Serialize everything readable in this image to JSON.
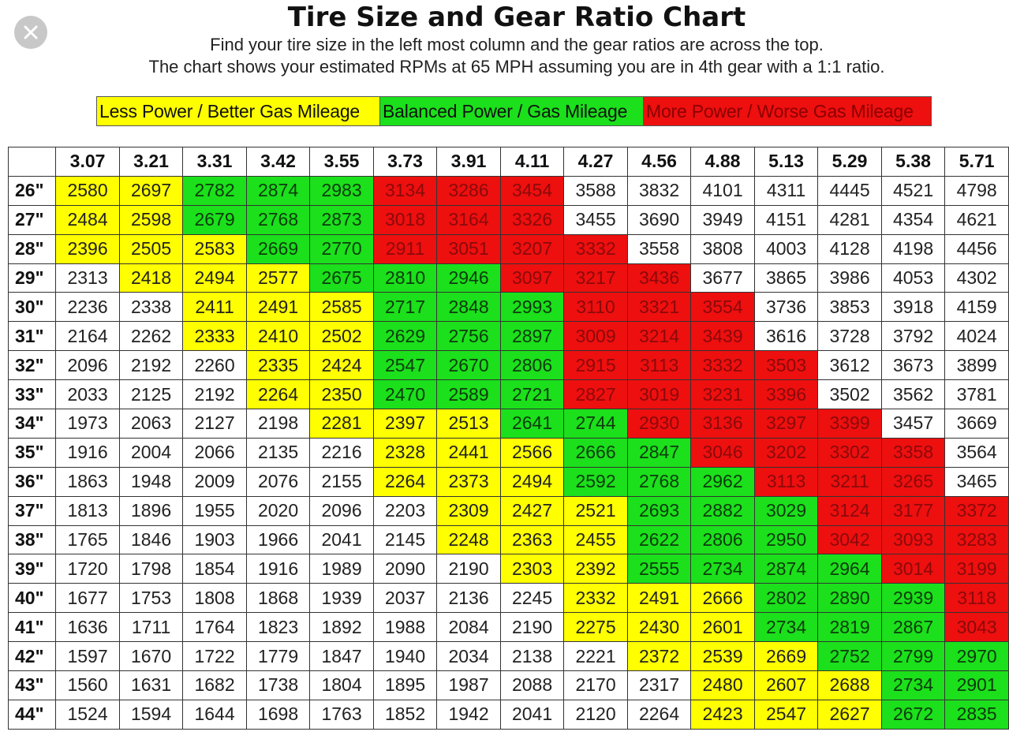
{
  "header": {
    "close_icon": "close-x-icon",
    "title": "Tire Size and Gear Ratio Chart",
    "subtitle_line1": "Find your tire size in the left most column and the gear ratios are across the top.",
    "subtitle_line2": "The chart shows your estimated RPMs at 65 MPH assuming you are in 4th gear with a 1:1 ratio."
  },
  "legend": [
    {
      "label": "Less Power / Better Gas Mileage",
      "color": "#ffff00"
    },
    {
      "label": "Balanced Power / Gas Mileage",
      "color": "#1be01b"
    },
    {
      "label": "More Power / Worse Gas Mileage",
      "color": "#ee0f0f"
    }
  ],
  "colors": {
    "w": "#ffffff",
    "y": "#ffff00",
    "g": "#1be01b",
    "r": "#ee0f0f"
  },
  "chart_data": {
    "type": "table",
    "columns": [
      "3.07",
      "3.21",
      "3.31",
      "3.42",
      "3.55",
      "3.73",
      "3.91",
      "4.11",
      "4.27",
      "4.56",
      "4.88",
      "5.13",
      "5.29",
      "5.38",
      "5.71"
    ],
    "rows": [
      {
        "tire": "26\"",
        "values": [
          "2580",
          "2697",
          "2782",
          "2874",
          "2983",
          "3134",
          "3286",
          "3454",
          "3588",
          "3832",
          "4101",
          "4311",
          "4445",
          "4521",
          "4798"
        ],
        "colors": "yygggrrrwwwwwww"
      },
      {
        "tire": "27\"",
        "values": [
          "2484",
          "2598",
          "2679",
          "2768",
          "2873",
          "3018",
          "3164",
          "3326",
          "3455",
          "3690",
          "3949",
          "4151",
          "4281",
          "4354",
          "4621"
        ],
        "colors": "yygggrrrwwwwwww"
      },
      {
        "tire": "28\"",
        "values": [
          "2396",
          "2505",
          "2583",
          "2669",
          "2770",
          "2911",
          "3051",
          "3207",
          "3332",
          "3558",
          "3808",
          "4003",
          "4128",
          "4198",
          "4456"
        ],
        "colors": "yyyggrrrrwwwwww"
      },
      {
        "tire": "29\"",
        "values": [
          "2313",
          "2418",
          "2494",
          "2577",
          "2675",
          "2810",
          "2946",
          "3097",
          "3217",
          "3436",
          "3677",
          "3865",
          "3986",
          "4053",
          "4302"
        ],
        "colors": "wyyygggrrrwwwww"
      },
      {
        "tire": "30\"",
        "values": [
          "2236",
          "2338",
          "2411",
          "2491",
          "2585",
          "2717",
          "2848",
          "2993",
          "3110",
          "3321",
          "3554",
          "3736",
          "3853",
          "3918",
          "4159"
        ],
        "colors": "wwyyygggrrrwwww"
      },
      {
        "tire": "31\"",
        "values": [
          "2164",
          "2262",
          "2333",
          "2410",
          "2502",
          "2629",
          "2756",
          "2897",
          "3009",
          "3214",
          "3439",
          "3616",
          "3728",
          "3792",
          "4024"
        ],
        "colors": "wwyyygggrrrwwww"
      },
      {
        "tire": "32\"",
        "values": [
          "2096",
          "2192",
          "2260",
          "2335",
          "2424",
          "2547",
          "2670",
          "2806",
          "2915",
          "3113",
          "3332",
          "3503",
          "3612",
          "3673",
          "3899"
        ],
        "colors": "wwwyygggrrrrwww"
      },
      {
        "tire": "33\"",
        "values": [
          "2033",
          "2125",
          "2192",
          "2264",
          "2350",
          "2470",
          "2589",
          "2721",
          "2827",
          "3019",
          "3231",
          "3396",
          "3502",
          "3562",
          "3781"
        ],
        "colors": "wwwyygggrrrrwww"
      },
      {
        "tire": "34\"",
        "values": [
          "1973",
          "2063",
          "2127",
          "2198",
          "2281",
          "2397",
          "2513",
          "2641",
          "2744",
          "2930",
          "3136",
          "3297",
          "3399",
          "3457",
          "3669"
        ],
        "colors": "wwwwyyyggrrrrww"
      },
      {
        "tire": "35\"",
        "values": [
          "1916",
          "2004",
          "2066",
          "2135",
          "2216",
          "2328",
          "2441",
          "2566",
          "2666",
          "2847",
          "3046",
          "3202",
          "3302",
          "3358",
          "3564"
        ],
        "colors": "wwwwwyyyggrrrrw"
      },
      {
        "tire": "36\"",
        "values": [
          "1863",
          "1948",
          "2009",
          "2076",
          "2155",
          "2264",
          "2373",
          "2494",
          "2592",
          "2768",
          "2962",
          "3113",
          "3211",
          "3265",
          "3465"
        ],
        "colors": "wwwwwyyygggrrrw"
      },
      {
        "tire": "37\"",
        "values": [
          "1813",
          "1896",
          "1955",
          "2020",
          "2096",
          "2203",
          "2309",
          "2427",
          "2521",
          "2693",
          "2882",
          "3029",
          "3124",
          "3177",
          "3372"
        ],
        "colors": "wwwwwwyyygggrrr"
      },
      {
        "tire": "38\"",
        "values": [
          "1765",
          "1846",
          "1903",
          "1966",
          "2041",
          "2145",
          "2248",
          "2363",
          "2455",
          "2622",
          "2806",
          "2950",
          "3042",
          "3093",
          "3283"
        ],
        "colors": "wwwwwwyyygggrrr"
      },
      {
        "tire": "39\"",
        "values": [
          "1720",
          "1798",
          "1854",
          "1916",
          "1989",
          "2090",
          "2190",
          "2303",
          "2392",
          "2555",
          "2734",
          "2874",
          "2964",
          "3014",
          "3199"
        ],
        "colors": "wwwwwwwyyggggrr"
      },
      {
        "tire": "40\"",
        "values": [
          "1677",
          "1753",
          "1808",
          "1868",
          "1939",
          "2037",
          "2136",
          "2245",
          "2332",
          "2491",
          "2666",
          "2802",
          "2890",
          "2939",
          "3118"
        ],
        "colors": "wwwwwwwwyyygggr"
      },
      {
        "tire": "41\"",
        "values": [
          "1636",
          "1711",
          "1764",
          "1823",
          "1892",
          "1988",
          "2084",
          "2190",
          "2275",
          "2430",
          "2601",
          "2734",
          "2819",
          "2867",
          "3043"
        ],
        "colors": "wwwwwwwwyyygggr"
      },
      {
        "tire": "42\"",
        "values": [
          "1597",
          "1670",
          "1722",
          "1779",
          "1847",
          "1940",
          "2034",
          "2138",
          "2221",
          "2372",
          "2539",
          "2669",
          "2752",
          "2799",
          "2970"
        ],
        "colors": "wwwwwwwwwyyyggg"
      },
      {
        "tire": "43\"",
        "values": [
          "1560",
          "1631",
          "1682",
          "1738",
          "1804",
          "1895",
          "1987",
          "2088",
          "2170",
          "2317",
          "2480",
          "2607",
          "2688",
          "2734",
          "2901"
        ],
        "colors": "wwwwwwwwwwyyygg"
      },
      {
        "tire": "44\"",
        "values": [
          "1524",
          "1594",
          "1644",
          "1698",
          "1763",
          "1852",
          "1942",
          "2041",
          "2120",
          "2264",
          "2423",
          "2547",
          "2627",
          "2672",
          "2835"
        ],
        "colors": "wwwwwwwwwwyyygg"
      }
    ]
  }
}
